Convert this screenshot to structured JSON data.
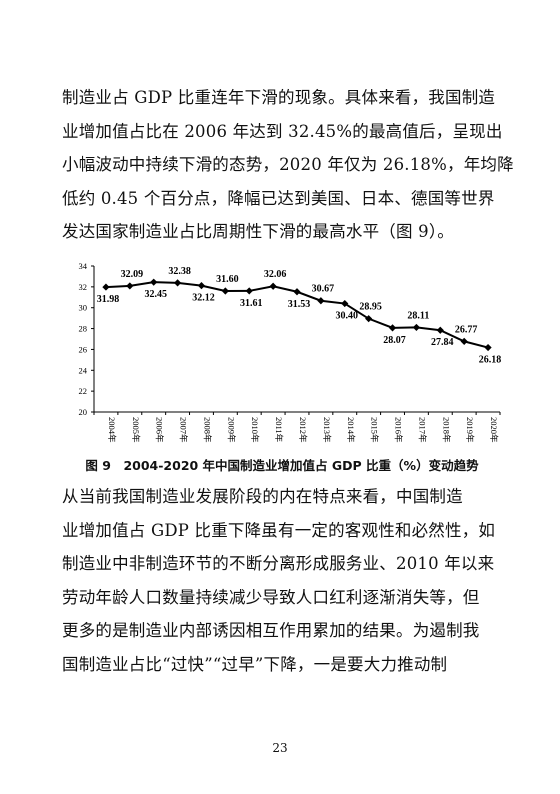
{
  "paragraph1": [
    "制造业占 GDP 比重连年下滑的现象。具体来看，我国制造",
    "业增加值占比在 2006 年达到 32.45%的最高值后，呈现出",
    "小幅波动中持续下滑的态势，2020 年仅为 26.18%，年均降",
    "低约 0.45 个百分点，降幅已达到美国、日本、德国等世界",
    "发达国家制造业占比周期性下滑的最高水平（图 9）。"
  ],
  "figure": {
    "caption": "图 9　2004-2020 年中国制造业增加值占 GDP 比重（%）变动趋势"
  },
  "chart_data": {
    "type": "line",
    "title": "",
    "xlabel": "",
    "ylabel": "",
    "ylim": [
      20,
      34
    ],
    "yticks": [
      "20",
      "22",
      "24",
      "26",
      "28",
      "30",
      "32",
      "34"
    ],
    "categories": [
      "2004年",
      "2005年",
      "2006年",
      "2007年",
      "2008年",
      "2009年",
      "2010年",
      "2011年",
      "2012年",
      "2013年",
      "2014年",
      "2015年",
      "2016年",
      "2017年",
      "2018年",
      "2019年",
      "2020年"
    ],
    "series": [
      {
        "values": [
          31.98,
          32.09,
          32.45,
          32.38,
          32.12,
          31.6,
          31.61,
          32.06,
          31.53,
          30.67,
          30.4,
          28.95,
          28.07,
          28.11,
          27.84,
          26.77,
          26.18
        ],
        "labels": [
          "31.98",
          "32.09",
          "32.45",
          "32.38",
          "32.12",
          "31.60",
          "31.61",
          "32.06",
          "31.53",
          "30.67",
          "30.40",
          "28.95",
          "28.07",
          "28.11",
          "27.84",
          "26.77",
          "26.18"
        ],
        "label_side": [
          "below",
          "above",
          "below",
          "above",
          "below",
          "above",
          "below",
          "above",
          "below",
          "above",
          "below",
          "above",
          "below",
          "above",
          "below",
          "above",
          "below"
        ]
      }
    ],
    "grid": false,
    "marker": "diamond",
    "color": "#000000"
  },
  "paragraph2": [
    "从当前我国制造业发展阶段的内在特点来看，中国制造",
    "业增加值占 GDP 比重下降虽有一定的客观性和必然性，如",
    "制造业中非制造环节的不断分离形成服务业、2010 年以来",
    "劳动年龄人口数量持续减少导致人口红利逐渐消失等，但",
    "更多的是制造业内部诱因相互作用累加的结果。为遏制我",
    "国制造业占比“过快”“过早”下降，一是要大力推动制"
  ],
  "page_number": "23"
}
